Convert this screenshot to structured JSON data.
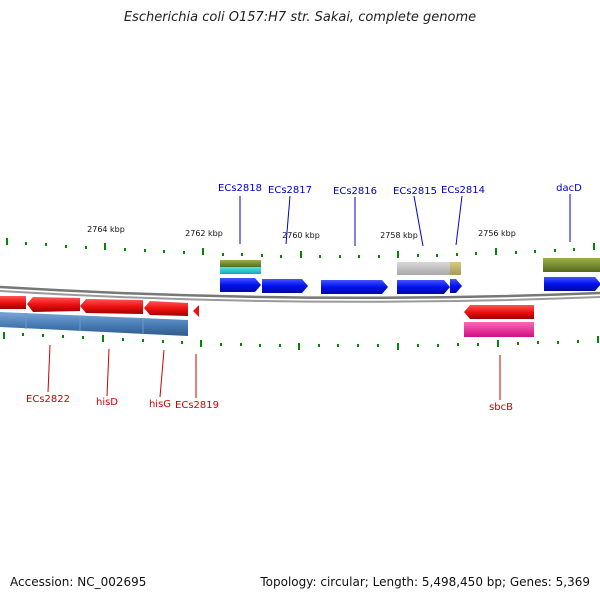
{
  "title": "Escherichia coli O157:H7 str. Sakai, complete genome",
  "footer": {
    "accession": "Accession: NC_002695",
    "info": "Topology: circular; Length: 5,498,450 bp; Genes: 5,369"
  },
  "colors": {
    "top_label": "#0000cc",
    "bottom_label": "#cc0000",
    "forward_gene": "#0011ee",
    "reverse_gene": "#ee1111",
    "tick": "#008800",
    "backbone": "#666666"
  },
  "kbp_labels": [
    "2764 kbp",
    "2762 kbp",
    "2760 kbp",
    "2758 kbp",
    "2756 kbp"
  ],
  "top_labels": [
    "ECs2818",
    "ECs2817",
    "ECs2816",
    "ECs2815",
    "ECs2814",
    "dacD"
  ],
  "bottom_labels": [
    "ECs2822",
    "hisD",
    "hisG",
    "ECs2819",
    "sbcB"
  ]
}
